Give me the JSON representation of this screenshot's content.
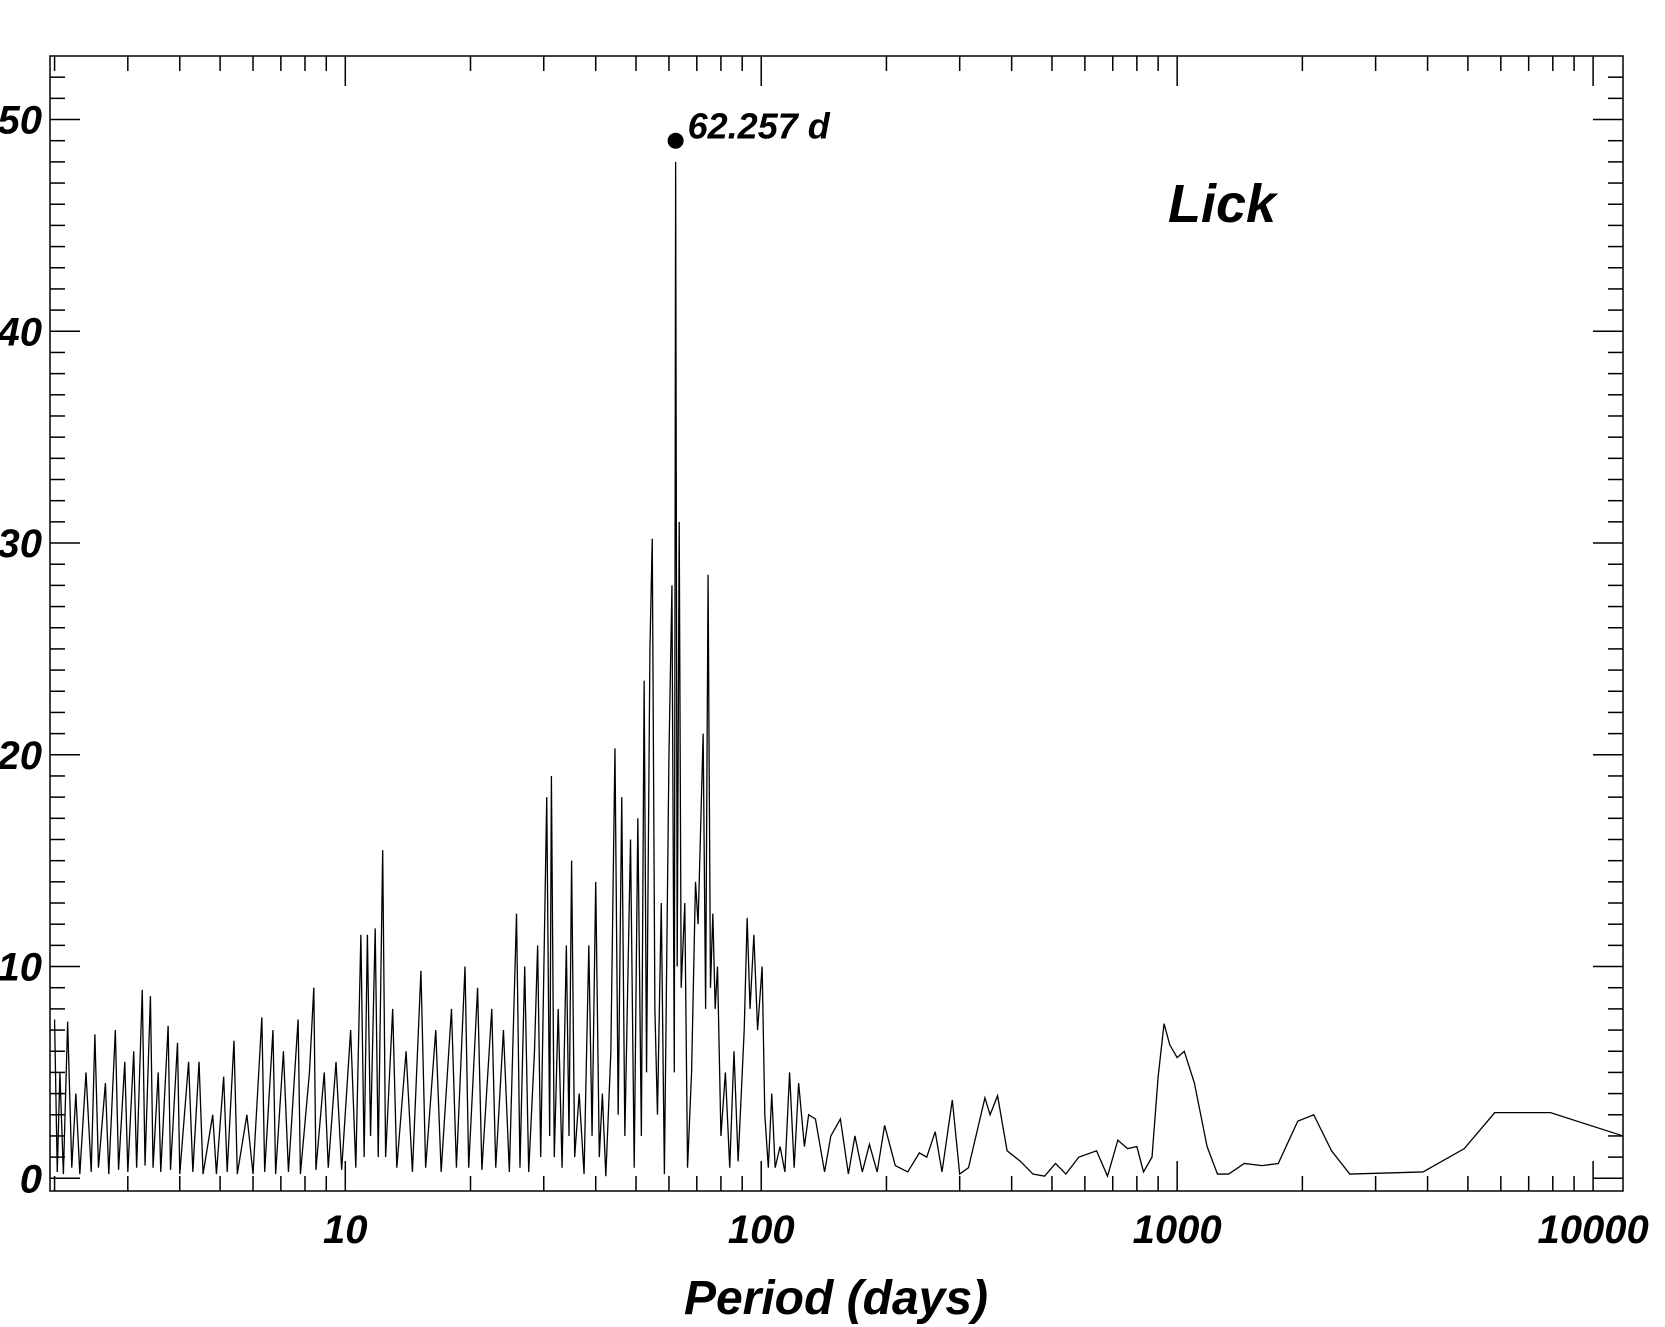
{
  "chart_data": {
    "type": "line",
    "xlabel": "Period (days)",
    "annotations": [
      {
        "text": "62.257 d",
        "x": 62.257,
        "y": 49
      }
    ],
    "label": "Lick",
    "color": "#000000",
    "xscale": "log",
    "xlim": [
      1.95,
      11800
    ],
    "ylim": [
      -0.6,
      53
    ],
    "xticks": [
      10,
      100,
      1000,
      10000
    ],
    "xminorticks": [
      2,
      3,
      4,
      5,
      6,
      7,
      8,
      9,
      20,
      30,
      40,
      50,
      60,
      70,
      80,
      90,
      200,
      300,
      400,
      500,
      600,
      700,
      800,
      900,
      2000,
      3000,
      4000,
      5000,
      6000,
      7000,
      8000,
      9000
    ],
    "yticks": [
      0,
      10,
      20,
      30,
      40,
      50
    ],
    "yminorticks": [
      1,
      2,
      3,
      4,
      5,
      6,
      7,
      8,
      9,
      11,
      12,
      13,
      14,
      15,
      16,
      17,
      18,
      19,
      21,
      22,
      23,
      24,
      25,
      26,
      27,
      28,
      29,
      31,
      32,
      33,
      34,
      35,
      36,
      37,
      38,
      39,
      41,
      42,
      43,
      44,
      45,
      46,
      47,
      48,
      49,
      51,
      52
    ],
    "x": [
      2.0,
      2.03,
      2.06,
      2.1,
      2.15,
      2.2,
      2.25,
      2.3,
      2.38,
      2.45,
      2.5,
      2.55,
      2.65,
      2.7,
      2.8,
      2.85,
      2.95,
      3.0,
      3.1,
      3.15,
      3.25,
      3.3,
      3.4,
      3.45,
      3.55,
      3.6,
      3.75,
      3.8,
      3.95,
      4.0,
      4.2,
      4.3,
      4.45,
      4.55,
      4.8,
      4.9,
      5.1,
      5.2,
      5.4,
      5.5,
      5.8,
      6.0,
      6.3,
      6.4,
      6.7,
      6.8,
      7.1,
      7.3,
      7.7,
      7.8,
      8.2,
      8.4,
      8.5,
      8.9,
      9.1,
      9.5,
      9.8,
      10.3,
      10.6,
      10.9,
      11.1,
      11.3,
      11.5,
      11.8,
      12.0,
      12.3,
      12.5,
      13.0,
      13.3,
      14.0,
      14.5,
      15.2,
      15.6,
      16.5,
      17.0,
      18.0,
      18.5,
      19.4,
      19.8,
      20.8,
      21.3,
      22.5,
      23.0,
      24.0,
      24.8,
      25.8,
      26.3,
      27.0,
      27.6,
      28.5,
      29.0,
      29.5,
      30.5,
      31.0,
      31.3,
      31.8,
      32.5,
      33.2,
      34.0,
      34.5,
      35.0,
      35.6,
      36.5,
      37.5,
      38.5,
      39.2,
      40.0,
      40.8,
      41.5,
      42.3,
      43.5,
      44.5,
      45.3,
      46.2,
      47.0,
      48.5,
      49.5,
      50.5,
      51.5,
      52.3,
      53.0,
      54.0,
      54.7,
      55.5,
      56.3,
      57.5,
      58.5,
      60.0,
      61.0,
      61.8,
      62.257,
      62.8,
      63.5,
      64.2,
      65.5,
      66.5,
      68.0,
      69.5,
      70.5,
      72.5,
      73.5,
      74.5,
      75.5,
      76.5,
      77.5,
      78.5,
      80,
      82,
      84,
      86,
      88,
      91,
      92.5,
      94,
      96,
      98,
      100.5,
      102,
      104,
      106,
      108,
      111,
      114,
      117,
      120,
      123,
      127,
      130,
      135,
      142,
      147,
      155,
      162,
      168,
      175,
      182,
      190,
      198,
      210,
      225,
      240,
      250,
      262,
      272,
      288,
      300,
      315,
      345,
      355,
      370,
      390,
      420,
      450,
      480,
      510,
      540,
      580,
      640,
      680,
      720,
      760,
      800,
      830,
      870,
      900,
      930,
      960,
      1000,
      1040,
      1100,
      1180,
      1250,
      1330,
      1450,
      1600,
      1750,
      1950,
      2130,
      2350,
      2600,
      3900,
      4900,
      5800,
      7900,
      11800
    ],
    "values": [
      7.5,
      0.3,
      5,
      0.2,
      7.4,
      0.5,
      4,
      0.2,
      5,
      0.3,
      6.8,
      0.5,
      4.5,
      0.2,
      7,
      0.4,
      5.5,
      0.3,
      6,
      0.5,
      8.9,
      0.6,
      8.6,
      0.5,
      5,
      0.3,
      7.2,
      0.4,
      6.4,
      0.2,
      5.5,
      0.3,
      5.5,
      0.2,
      3,
      0.2,
      4.8,
      0.3,
      6.5,
      0.2,
      3,
      0.2,
      7.6,
      0.3,
      7,
      0.2,
      6,
      0.3,
      7.5,
      0.2,
      5,
      9.0,
      0.4,
      5,
      0.5,
      5.5,
      0.4,
      7,
      0.5,
      11.5,
      1,
      11.5,
      2,
      11.8,
      1,
      15.5,
      1,
      8,
      0.5,
      6,
      0.3,
      9.8,
      0.5,
      7,
      0.3,
      8,
      0.5,
      10,
      0.5,
      9,
      0.4,
      8,
      0.5,
      7,
      0.3,
      12.5,
      0.5,
      10,
      0.3,
      6,
      11,
      1,
      18,
      2,
      19,
      1,
      8,
      0.5,
      11,
      2,
      15,
      1,
      4,
      0.2,
      11,
      2,
      14,
      1,
      4,
      0.1,
      6,
      20.3,
      3,
      18,
      2,
      16,
      0.5,
      17,
      2,
      23.5,
      5,
      25,
      30.2,
      8,
      3,
      13,
      0.2,
      20,
      28,
      5,
      48,
      10,
      31,
      9,
      13,
      0.5,
      5,
      14,
      12,
      21,
      8,
      28.5,
      9,
      12.5,
      8,
      10,
      2,
      5,
      0.5,
      6,
      0.8,
      7,
      12.3,
      8,
      11.5,
      7,
      10,
      3,
      0.5,
      4,
      0.5,
      1.5,
      0.3,
      5,
      0.5,
      4.5,
      1.5,
      3,
      2.8,
      0.3,
      2,
      2.8,
      0.2,
      2,
      0.3,
      1.6,
      0.3,
      2.5,
      0.6,
      0.3,
      1.2,
      1,
      2.2,
      0.3,
      3.7,
      0.2,
      0.5,
      3.8,
      3,
      3.9,
      1.3,
      0.8,
      0.2,
      0.1,
      0.7,
      0.2,
      1,
      1.3,
      0.1,
      1.8,
      1.4,
      1.5,
      0.3,
      1,
      4.8,
      7.3,
      6.3,
      5.7,
      6,
      4.5,
      1.5,
      0.2,
      0.2,
      0.7,
      0.6,
      0.7,
      2.7,
      3.0,
      1.3,
      0.2,
      0.3,
      1.4,
      3.1,
      3.1,
      2.0
    ]
  }
}
